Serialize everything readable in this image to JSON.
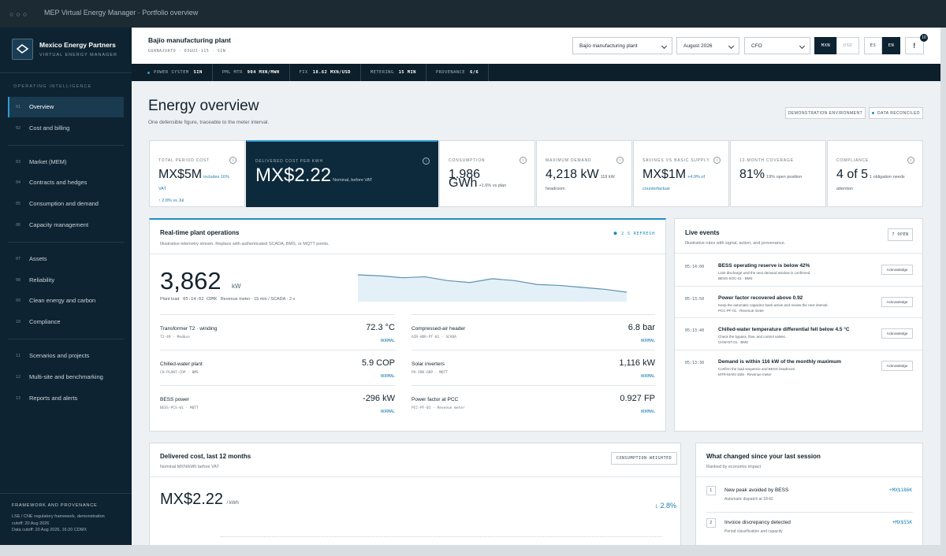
{
  "window": {
    "title": "MEP Virtual Energy Manager · Portfolio overview"
  },
  "sidebar": {
    "brand": "Mexico Energy Partners",
    "tagline": "VIRTUAL ENERGY MANAGER",
    "section": "OPERATING INTELLIGENCE",
    "groups": [
      [
        {
          "num": "01",
          "label": "Overview"
        },
        {
          "num": "02",
          "label": "Cost and billing"
        }
      ],
      [
        {
          "num": "03",
          "label": "Market (MEM)"
        },
        {
          "num": "04",
          "label": "Contracts and hedges"
        },
        {
          "num": "05",
          "label": "Consumption and demand"
        },
        {
          "num": "06",
          "label": "Capacity management"
        }
      ],
      [
        {
          "num": "07",
          "label": "Assets"
        },
        {
          "num": "08",
          "label": "Reliability"
        },
        {
          "num": "09",
          "label": "Clean energy and carbon"
        },
        {
          "num": "10",
          "label": "Compliance"
        }
      ],
      [
        {
          "num": "11",
          "label": "Scenarios and projects"
        },
        {
          "num": "12",
          "label": "Multi-site and benchmarking"
        },
        {
          "num": "13",
          "label": "Reports and alerts"
        }
      ]
    ],
    "footer": {
      "title": "FRAMEWORK AND PROVENANCE",
      "lines": [
        "LSE / CNE regulatory framework, demonstration cutoff: 20 Aug 2026",
        "Data cutoff: 20 Aug 2026, 16:20 CDMX"
      ]
    }
  },
  "header": {
    "site": "Bajío manufacturing plant",
    "location": "GUANAJUATO · 03GUJ-115 · SIN",
    "selects": [
      "Bajío manufacturing plant",
      "August 2026",
      "CFO"
    ],
    "currency": [
      "MXN",
      "USD"
    ],
    "language": [
      "ES",
      "EN"
    ],
    "alert": "!",
    "alert_count": "10"
  },
  "status": [
    {
      "label": "POWER SYSTEM",
      "value": "SIN"
    },
    {
      "label": "PML MTR",
      "value": "904 MXN/MWH"
    },
    {
      "label": "FIX",
      "value": "18.62 MXN/USD"
    },
    {
      "label": "METERING",
      "value": "15 MIN"
    },
    {
      "label": "PROVENANCE",
      "value": "6/6"
    }
  ],
  "page": {
    "title": "Energy overview",
    "subtitle": "One defensible figure, traceable to the meter interval.",
    "badges": [
      "DEMONSTRATION ENVIRONMENT",
      "DATA RECONCILED"
    ]
  },
  "kpis": [
    {
      "label": "TOTAL PERIOD COST",
      "value": "MX$5M",
      "note": "includes 16% VAT",
      "detail": "↑ 2.8% vs Jul"
    },
    {
      "label": "DELIVERED COST PER KWH",
      "value": "MX$2.22",
      "note": "Nominal, before VAT"
    },
    {
      "label": "CONSUMPTION",
      "value": "1.986 GWh",
      "note": "+1.6% vs plan"
    },
    {
      "label": "MAXIMUM DEMAND",
      "value": "4,218 kW",
      "note": "118 kW headroom"
    },
    {
      "label": "SAVINGS VS BASIC SUPPLY",
      "value": "MX$1M",
      "note": "+4.9% of counterfactual"
    },
    {
      "label": "12-MONTH COVERAGE",
      "value": "81%",
      "note": "19% open position"
    },
    {
      "label": "COMPLIANCE",
      "value": "4 of 5",
      "note": "1 obligation needs attention"
    }
  ],
  "realtime": {
    "title": "Real-time plant operations",
    "refresh": "2 S REFRESH",
    "subtitle": "Illustrative telemetry stream. Replace with authenticated SCADA, BMS, or MQTT points.",
    "load": "3,862",
    "unit": "kW",
    "load_label": "Plant load",
    "time": "05:14:02 CDMX",
    "source": "Revenue meter · 15 min / SCADA · 2 s",
    "sparkline": [
      3880,
      3879,
      3877,
      3878,
      3874,
      3872,
      3876,
      3874,
      3870,
      3869,
      3867,
      3865,
      3862
    ],
    "metrics": [
      {
        "label": "Transformer T2 · winding",
        "source": "T2-49 · Modbus",
        "value": "72.3 °C",
        "status": "NORMAL"
      },
      {
        "label": "Compressed-air header",
        "source": "AIR-HDR-PT-01 · SCADA",
        "value": "6.8 bar",
        "status": "NORMAL"
      },
      {
        "label": "Chilled-water plant",
        "source": "CH-PLANT-COP · BMS",
        "value": "5.9 COP",
        "status": "NORMAL"
      },
      {
        "label": "Solar inverters",
        "source": "PV-INV-GRP · MQTT",
        "value": "1,116 kW",
        "status": "NORMAL"
      },
      {
        "label": "BESS power",
        "source": "BESS-PCS-01 · MQTT",
        "value": "-296 kW",
        "status": "NORMAL"
      },
      {
        "label": "Power factor at PCC",
        "source": "PCC-PF-01 · Revenue meter",
        "value": "0.927 FP",
        "status": "NORMAL"
      }
    ]
  },
  "events": {
    "title": "Live events",
    "subtitle": "Illustrative rules with signal, action, and provenance.",
    "open": "7 OPEN",
    "items": [
      {
        "time": "05:14:00",
        "title": "BESS operating reserve is below 42%",
        "text": "Limit discharge until the next demand window is confirmed.",
        "source": "BESS-SOC-01 · BMS",
        "action": "Acknowledge"
      },
      {
        "time": "05:13:50",
        "title": "Power factor recovered above 0.92",
        "text": "Keep the automatic capacitor bank active and review the next interval.",
        "source": "PCC-PF-01 · Revenue meter",
        "action": "Acknowledge"
      },
      {
        "time": "05:13:40",
        "title": "Chilled-water temperature differential fell below 4.5 °C",
        "text": "Check the bypass, flow, and control valves.",
        "source": "CHW-DT-01 · BMS",
        "action": "Acknowledge"
      },
      {
        "time": "05:13:30",
        "title": "Demand is within 116 kW of the monthly maximum",
        "text": "Confirm the load sequence and BESS headroom.",
        "source": "MTR-MAIN-15M · Revenue meter",
        "action": "Acknowledge"
      }
    ]
  },
  "delivered": {
    "title": "Delivered cost, last 12 months",
    "subtitle": "Nominal MXN/kWh before VAT",
    "badge": "CONSUMPTION-WEIGHTED",
    "value": "MX$2.22",
    "unit": "/ kWh",
    "change": "↓ 2.8%"
  },
  "changes": {
    "title": "What changed since your last session",
    "subtitle": "Ranked by economic impact",
    "items": [
      {
        "rank": "1",
        "title": "New peak avoided by BESS",
        "text": "Automatic dispatch at 18:42",
        "value": "+MX$186K"
      },
      {
        "rank": "2",
        "title": "Invoice discrepancy detected",
        "text": "Period classification and capacity",
        "value": "+MX$55K"
      }
    ]
  }
}
